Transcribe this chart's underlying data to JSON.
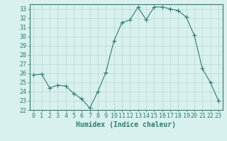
{
  "x": [
    0,
    1,
    2,
    3,
    4,
    5,
    6,
    7,
    8,
    9,
    10,
    11,
    12,
    13,
    14,
    15,
    16,
    17,
    18,
    19,
    20,
    21,
    22,
    23
  ],
  "y": [
    25.8,
    25.9,
    24.4,
    24.7,
    24.6,
    23.8,
    23.2,
    22.2,
    24.0,
    26.1,
    29.5,
    31.5,
    31.8,
    33.2,
    31.8,
    33.2,
    33.2,
    33.0,
    32.8,
    32.1,
    30.1,
    26.5,
    25.0,
    23.0
  ],
  "line_color": "#2e7d6e",
  "marker": "+",
  "marker_size": 4,
  "bg_color": "#d8f0ee",
  "grid_color": "#b8d8d4",
  "xlabel": "Humidex (Indice chaleur)",
  "xlim": [
    -0.5,
    23.5
  ],
  "ylim": [
    22,
    33.5
  ],
  "yticks": [
    22,
    23,
    24,
    25,
    26,
    27,
    28,
    29,
    30,
    31,
    32,
    33
  ],
  "xtick_labels": [
    "0",
    "1",
    "2",
    "3",
    "4",
    "5",
    "6",
    "7",
    "8",
    "9",
    "10",
    "11",
    "12",
    "13",
    "14",
    "15",
    "16",
    "17",
    "18",
    "19",
    "20",
    "21",
    "22",
    "23"
  ],
  "tick_color": "#2e7d6e",
  "axis_color": "#2e7d6e",
  "xlabel_fontsize": 7,
  "tick_fontsize": 6
}
